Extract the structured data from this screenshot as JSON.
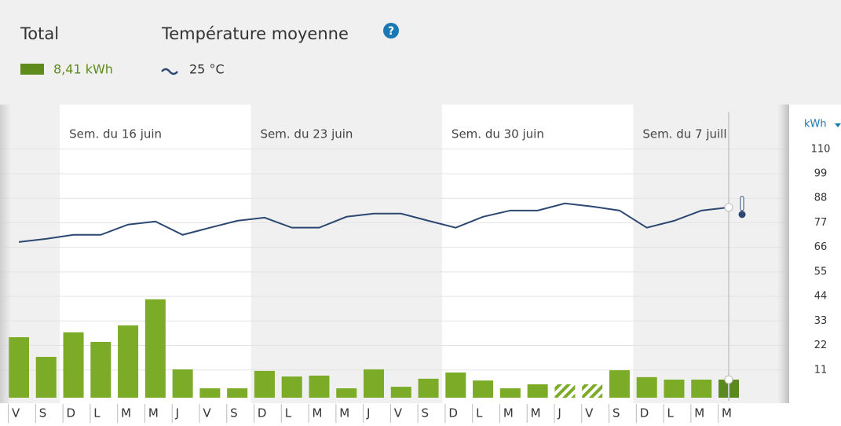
{
  "chart_data": {
    "type": "bar-line",
    "header": {
      "total_title": "Total",
      "total_value": "8,41 kWh",
      "temperature_title": "Température moyenne",
      "temperature_value": "25 °C"
    },
    "y_unit": "kWh",
    "weeks": [
      "Sem. du 16 juin",
      "Sem. du 23 juin",
      "Sem. du 30 juin",
      "Sem. du 7 juill."
    ],
    "categories": [
      "V",
      "S",
      "D",
      "L",
      "M",
      "M",
      "J",
      "V",
      "S",
      "D",
      "L",
      "M",
      "M",
      "J",
      "V",
      "S",
      "D",
      "L",
      "M",
      "M",
      "J",
      "V",
      "S",
      "D",
      "L",
      "M",
      "M"
    ],
    "series": [
      {
        "name": "Total",
        "type": "bar",
        "color": "#7cac27",
        "selected_color": "#5a8a1e",
        "values": [
          25.7,
          16.9,
          27.9,
          23.6,
          31.0,
          42.7,
          11.3,
          2.8,
          2.8,
          10.6,
          8.1,
          8.5,
          2.8,
          11.3,
          3.5,
          7.1,
          9.9,
          6.3,
          2.8,
          4.6,
          4.6,
          4.6,
          10.9,
          7.8,
          6.7,
          6.7,
          6.7
        ],
        "bar_styles": [
          "solid",
          "solid",
          "solid",
          "solid",
          "solid",
          "solid",
          "solid",
          "solid",
          "solid",
          "solid",
          "solid",
          "solid",
          "solid",
          "solid",
          "solid",
          "solid",
          "solid",
          "solid",
          "solid",
          "solid",
          "hatched",
          "hatched",
          "solid",
          "solid",
          "solid",
          "solid",
          "selected"
        ]
      },
      {
        "name": "Température moyenne",
        "type": "line",
        "color": "#2c4770",
        "values": [
          68.4,
          69.8,
          71.6,
          71.6,
          76.2,
          77.6,
          71.6,
          74.8,
          77.9,
          79.3,
          74.8,
          74.8,
          79.7,
          81.1,
          81.1,
          77.9,
          74.8,
          79.7,
          82.5,
          82.5,
          85.7,
          84.3,
          82.5,
          74.8,
          77.9,
          82.5,
          83.9
        ]
      }
    ],
    "ylim": [
      0,
      130
    ],
    "yticks": [
      11,
      22,
      33,
      44,
      55,
      66,
      77,
      88,
      99,
      110
    ],
    "grid": true
  }
}
